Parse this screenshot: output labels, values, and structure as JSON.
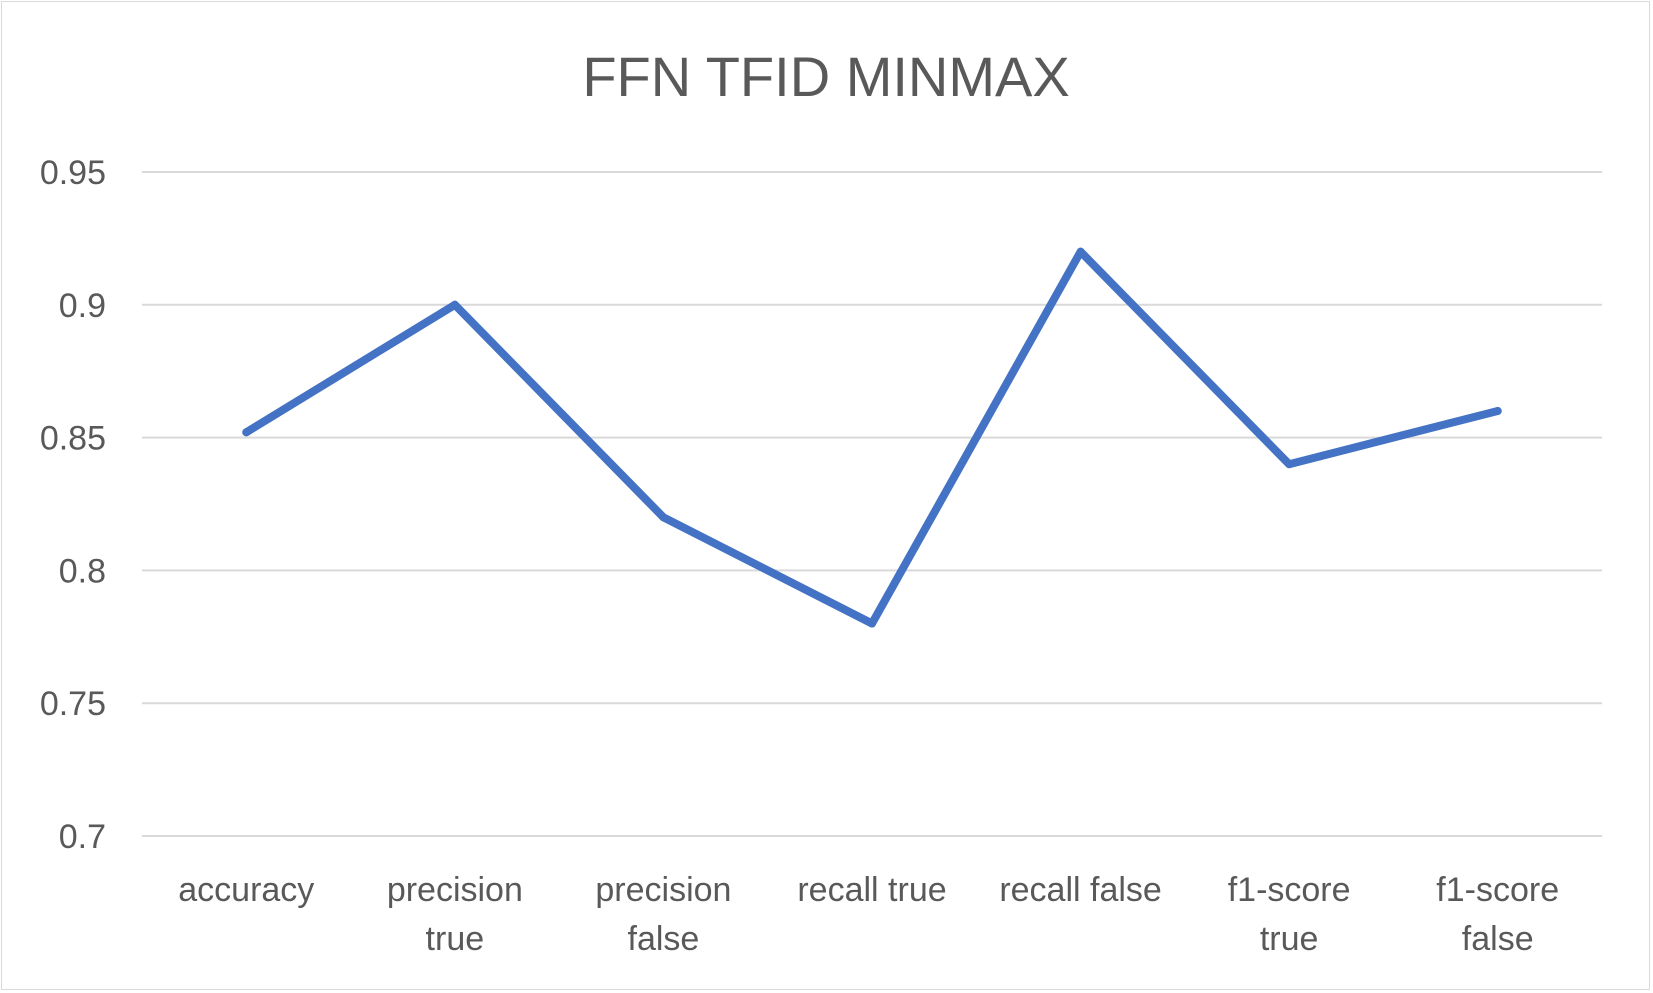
{
  "chart_data": {
    "type": "line",
    "title": "FFN TFID MINMAX",
    "xlabel": "",
    "ylabel": "",
    "categories": [
      "accuracy",
      "precision true",
      "precision false",
      "recall true",
      "recall false",
      "f1-score true",
      "f1-score false"
    ],
    "category_lines": [
      [
        "accuracy"
      ],
      [
        "precision",
        "true"
      ],
      [
        "precision",
        "false"
      ],
      [
        "recall true"
      ],
      [
        "recall false"
      ],
      [
        "f1-score",
        "true"
      ],
      [
        "f1-score",
        "false"
      ]
    ],
    "series": [
      {
        "values": [
          0.852,
          0.9,
          0.82,
          0.78,
          0.92,
          0.84,
          0.86
        ],
        "color": "#4472c4"
      }
    ],
    "ylim": [
      0.7,
      0.95
    ],
    "yticks": [
      0.7,
      0.75,
      0.8,
      0.85,
      0.9,
      0.95
    ],
    "ytick_labels": [
      "0.7",
      "0.75",
      "0.8",
      "0.85",
      "0.9",
      "0.95"
    ],
    "grid": true,
    "legend": "none",
    "gridline_color": "#d9d9d9",
    "text_color": "#595959"
  }
}
